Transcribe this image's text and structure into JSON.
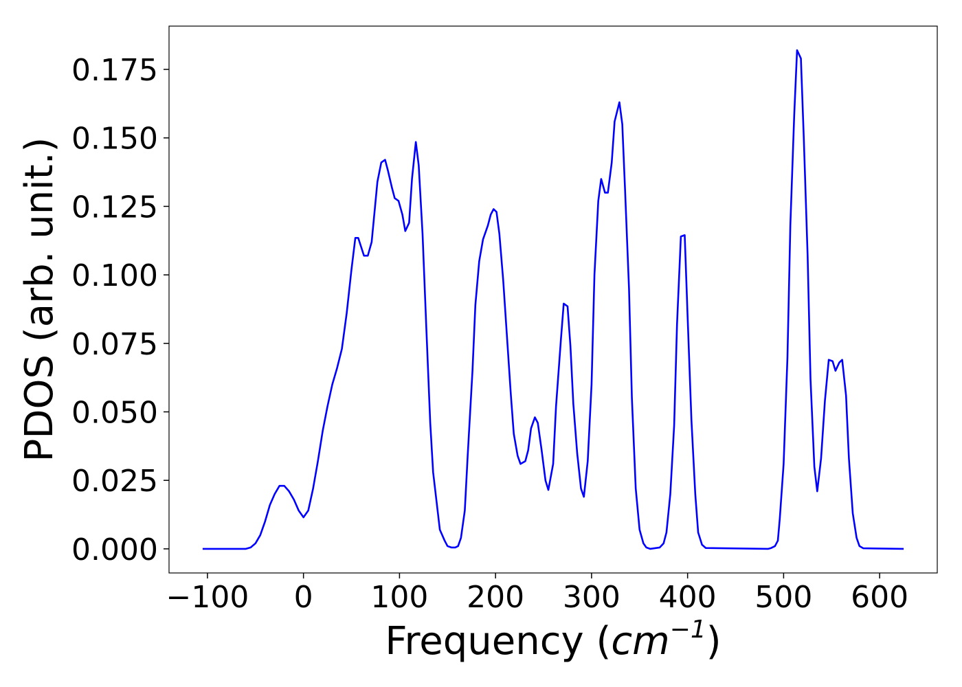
{
  "chart_data": {
    "type": "line",
    "x_label": [
      "Frequency (",
      "cm",
      "−1",
      ")"
    ],
    "y_label": "PDOS (arb. unit.)",
    "xlim": [
      -140,
      660
    ],
    "ylim": [
      -0.0088,
      0.1908
    ],
    "xticks": [
      {
        "value": -100,
        "label": "−100"
      },
      0,
      100,
      200,
      300,
      400,
      500,
      600
    ],
    "yticks": [
      {
        "value": 0,
        "label": "0.000"
      },
      0.025,
      {
        "value": 0.05,
        "label": "0.050"
      },
      0.075,
      {
        "value": 0.1,
        "label": "0.100"
      },
      0.125,
      {
        "value": 0.15,
        "label": "0.150"
      },
      0.175
    ],
    "grid": false,
    "series": [
      {
        "color": "#0000ff",
        "x": [
          -105,
          -60,
          -55,
          -50,
          -45,
          -40,
          -35,
          -30,
          -25,
          -20,
          -15,
          -10,
          -5,
          0,
          5,
          10,
          15,
          20,
          25,
          30,
          35,
          40,
          45,
          50,
          54,
          57,
          63,
          67,
          71,
          77,
          81,
          85,
          88,
          92,
          95,
          99,
          103,
          106,
          110,
          113,
          117,
          120,
          124,
          128,
          132,
          135,
          139,
          142,
          147,
          150,
          154,
          158,
          161,
          164,
          168,
          171,
          176,
          179,
          183,
          187,
          192,
          195,
          198,
          201,
          204,
          208,
          212,
          216,
          219,
          223,
          226,
          231,
          234,
          237,
          241,
          244,
          248,
          252,
          255,
          260,
          263,
          268,
          271,
          275,
          278,
          281,
          285,
          289,
          292,
          296,
          300,
          303,
          307,
          310,
          314,
          317,
          321,
          324,
          329,
          332,
          335,
          339,
          342,
          346,
          350,
          354,
          357,
          361,
          371,
          375,
          378,
          382,
          386,
          389,
          393,
          397,
          400,
          404,
          408,
          411,
          415,
          419,
          484,
          487,
          491,
          494,
          496,
          500,
          504,
          507,
          511,
          514,
          518,
          521,
          525,
          528,
          532,
          535,
          539,
          543,
          547,
          551,
          554,
          558,
          561,
          565,
          568,
          572,
          576,
          579,
          583,
          625
        ],
        "values": [
          0,
          0,
          0.0005,
          0.002,
          0.005,
          0.01,
          0.016,
          0.02,
          0.023,
          0.023,
          0.021,
          0.018,
          0.014,
          0.0115,
          0.014,
          0.022,
          0.032,
          0.043,
          0.052,
          0.06,
          0.066,
          0.073,
          0.086,
          0.102,
          0.1135,
          0.1135,
          0.107,
          0.107,
          0.112,
          0.134,
          0.141,
          0.142,
          0.138,
          0.132,
          0.128,
          0.127,
          0.122,
          0.116,
          0.119,
          0.135,
          0.1485,
          0.14,
          0.115,
          0.08,
          0.046,
          0.028,
          0.016,
          0.007,
          0.003,
          0.001,
          0.0005,
          0.0005,
          0.001,
          0.004,
          0.014,
          0.034,
          0.065,
          0.089,
          0.105,
          0.113,
          0.118,
          0.122,
          0.124,
          0.123,
          0.115,
          0.098,
          0.077,
          0.056,
          0.042,
          0.034,
          0.031,
          0.032,
          0.036,
          0.044,
          0.048,
          0.046,
          0.036,
          0.025,
          0.0215,
          0.031,
          0.052,
          0.076,
          0.0895,
          0.0885,
          0.074,
          0.053,
          0.035,
          0.022,
          0.019,
          0.032,
          0.06,
          0.1,
          0.127,
          0.135,
          0.13,
          0.13,
          0.141,
          0.156,
          0.163,
          0.155,
          0.13,
          0.095,
          0.055,
          0.022,
          0.007,
          0.002,
          0.0005,
          0,
          0.0005,
          0.002,
          0.006,
          0.02,
          0.045,
          0.082,
          0.114,
          0.1145,
          0.085,
          0.047,
          0.02,
          0.006,
          0.0015,
          0.0003,
          0,
          0.0003,
          0.001,
          0.003,
          0.011,
          0.031,
          0.07,
          0.118,
          0.158,
          0.182,
          0.179,
          0.15,
          0.107,
          0.062,
          0.03,
          0.021,
          0.033,
          0.054,
          0.069,
          0.0685,
          0.065,
          0.068,
          0.069,
          0.056,
          0.033,
          0.013,
          0.004,
          0.001,
          0.0002,
          0
        ]
      }
    ]
  }
}
